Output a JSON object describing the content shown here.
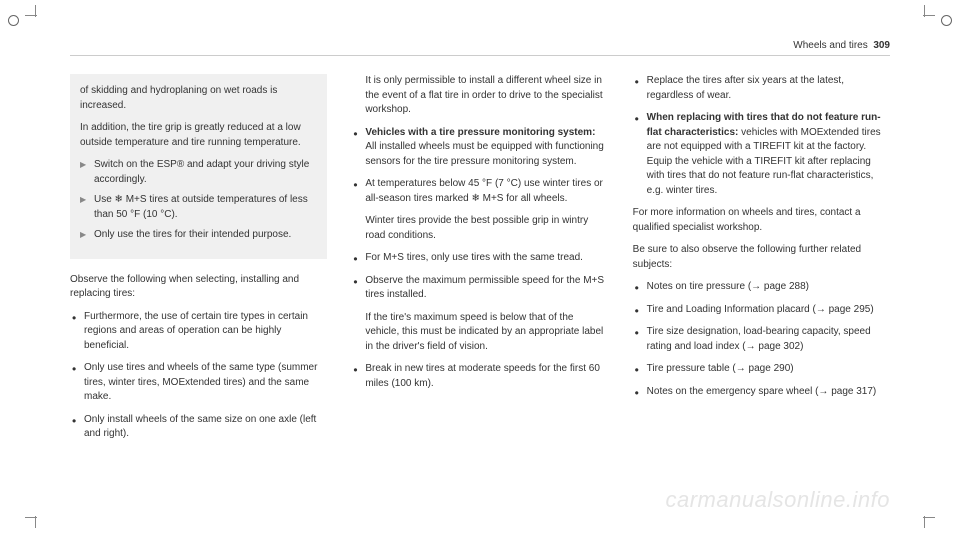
{
  "header": {
    "section": "Wheels and tires",
    "pagenum": "309"
  },
  "col1": {
    "greybox": {
      "p1": "of skidding and hydroplaning on wet roads is increased.",
      "p2": "In addition, the tire grip is greatly reduced at a low outside temperature and tire running temperature.",
      "arrows": [
        "Switch on the ESP® and adapt your driving style accordingly.",
        "Use  ❄  M+S tires at outside temperatures of less than 50 °F (10 °C).",
        "Only use the tires for their intended purpose."
      ]
    },
    "p3": "Observe the following when selecting, installing and replacing tires:",
    "bullets": [
      "Furthermore, the use of certain tire types in certain regions and areas of operation can be highly beneficial.",
      "Only use tires and wheels of the same type (summer tires, winter tires, MOExtended tires) and the same make.",
      "Only install wheels of the same size on one axle (left and right)."
    ]
  },
  "col2": {
    "sub1": "It is only permissible to install a different wheel size in the event of a flat tire in order to drive to the specialist workshop.",
    "bullets": [
      {
        "bold": "Vehicles with a tire pressure monitoring system:",
        "text": " All installed wheels must be equipped with functioning sensors for the tire pressure monitoring system."
      },
      {
        "text": "At temperatures below 45 °F (7 °C) use winter tires or all-season tires marked  ❄  M+S for all wheels."
      },
      {
        "sub": "Winter tires provide the best possible grip in wintry road conditions."
      },
      {
        "text": "For M+S tires, only use tires with the same tread."
      },
      {
        "text": "Observe the maximum permissible speed for the M+S tires installed."
      },
      {
        "sub": "If the tire's maximum speed is below that of the vehicle, this must be indicated by an appropriate label in the driver's field of vision."
      },
      {
        "text": "Break in new tires at moderate speeds for the first 60 miles (100 km)."
      }
    ]
  },
  "col3": {
    "bullets1": [
      "Replace the tires after six years at the latest, regardless of wear.",
      {
        "bold": "When replacing with tires that do not feature run-flat characteristics:",
        "text": " vehicles with MOExtended tires are not equipped with a TIREFIT kit at the factory. Equip the vehicle with a TIREFIT kit after replacing with tires that do not feature run-flat characteristics, e.g. winter tires."
      }
    ],
    "p1": "For more information on wheels and tires, contact a qualified specialist workshop.",
    "p2": "Be sure to also observe the following further related subjects:",
    "bullets2": [
      "Notes on tire pressure (→ page 288)",
      "Tire and Loading Information placard (→ page 295)",
      "Tire size designation, load-bearing capacity, speed rating and load index (→ page 302)",
      "Tire pressure table (→ page 290)",
      "Notes on the emergency spare wheel (→ page 317)"
    ]
  },
  "watermark": "carmanualsonline.info"
}
